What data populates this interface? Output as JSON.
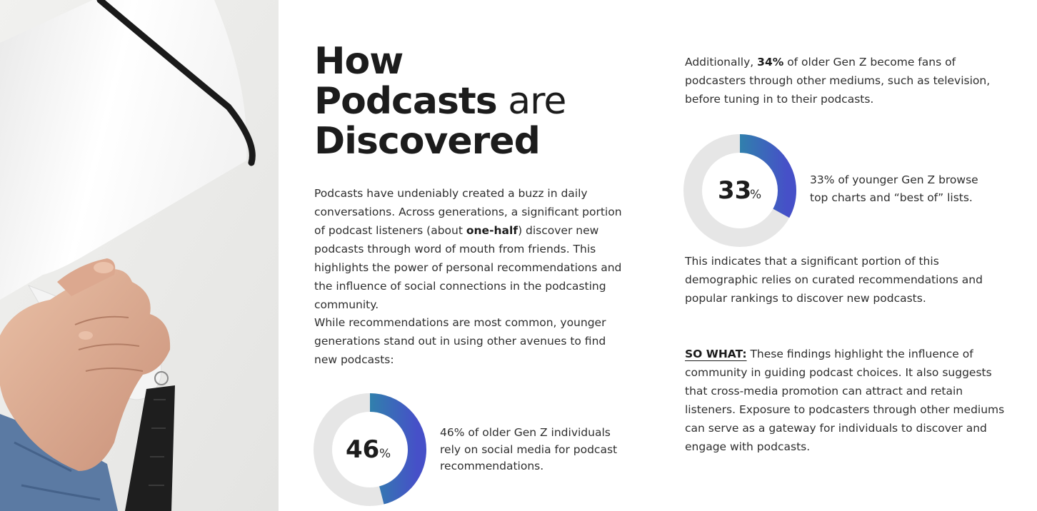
{
  "title": {
    "line1": "How",
    "line2_bold": "Podcasts",
    "line2_light": " are",
    "line3": "Discovered"
  },
  "intro": {
    "p1_before": "Podcasts have undeniably created a buzz in daily conversations. Across generations, a significant portion of podcast listeners (about ",
    "p1_bold": "one-half",
    "p1_after": ") discover new podcasts through word of mouth from friends. This highlights the power of personal recommendations and the influence of social connections in the podcasting community.",
    "p2": "While recommendations are most common, younger generations stand out in using other avenues to find new podcasts:"
  },
  "stat_46": {
    "value": 46,
    "number": "46",
    "unit": "%",
    "caption": "46% of older Gen Z individuals rely on social media for podcast recommendations."
  },
  "right_intro": {
    "before": "Additionally, ",
    "bold": "34%",
    "after": " of older Gen Z become fans of podcasters through other mediums, such as television, before tuning in to their podcasts."
  },
  "stat_33": {
    "value": 33,
    "number": "33",
    "unit": "%",
    "caption": "33% of younger Gen Z browse top charts and “best of” lists."
  },
  "right_mid": "This indicates that a significant portion of this demographic relies on curated recommendations and popular rankings to discover new podcasts.",
  "so_what": {
    "label": "SO WHAT:",
    "text": " These findings highlight the influence of community in guiding podcast choices. It also suggests that cross-media promotion can attract and retain listeners. Exposure to podcasters through other mediums can serve as a gateway for individuals to discover and engage with podcasts."
  },
  "colors": {
    "ring_track": "#e6e6e6",
    "gradient_start": "#1bb091",
    "gradient_end": "#4650c8",
    "text_dark": "#1c1c1c"
  }
}
